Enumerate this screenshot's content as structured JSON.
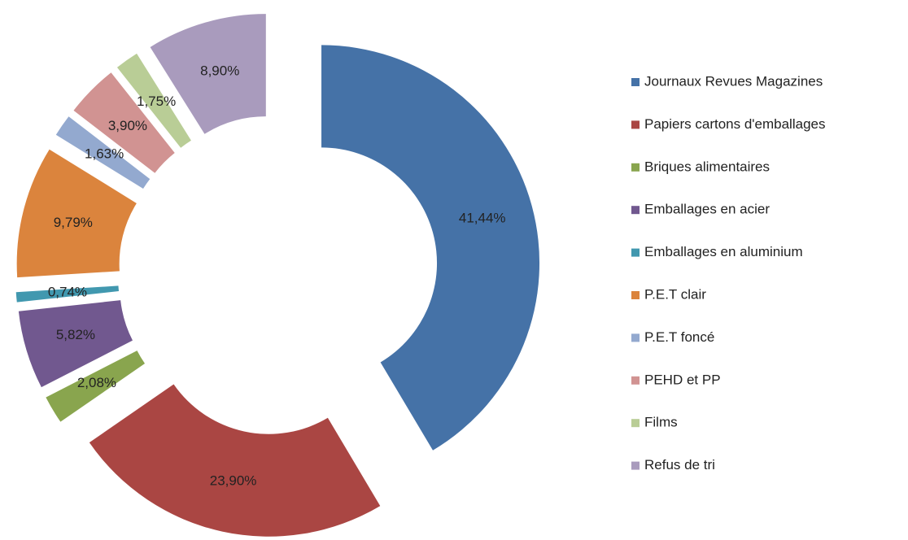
{
  "chart_data": {
    "type": "doughnut",
    "categories": [
      "Journaux Revues Magazines",
      "Papiers cartons d'emballages",
      "Briques alimentaires",
      "Emballages en acier",
      "Emballages en aluminium",
      "P.E.T clair",
      "P.E.T foncé",
      "PEHD et PP",
      "Films",
      "Refus de tri"
    ],
    "values": [
      41.44,
      23.9,
      2.08,
      5.82,
      0.74,
      9.79,
      1.63,
      3.9,
      1.75,
      8.9
    ],
    "value_labels": [
      "41,44%",
      "23,90%",
      "2,08%",
      "5,82%",
      "0,74%",
      "9,79%",
      "1,63%",
      "3,90%",
      "1,75%",
      "8,90%"
    ],
    "colors": [
      "#4572a7",
      "#aa4643",
      "#89a54e",
      "#71588f",
      "#4198af",
      "#db843d",
      "#93a9cf",
      "#d19392",
      "#b9cd96",
      "#a99bbd"
    ],
    "legend": "right"
  }
}
